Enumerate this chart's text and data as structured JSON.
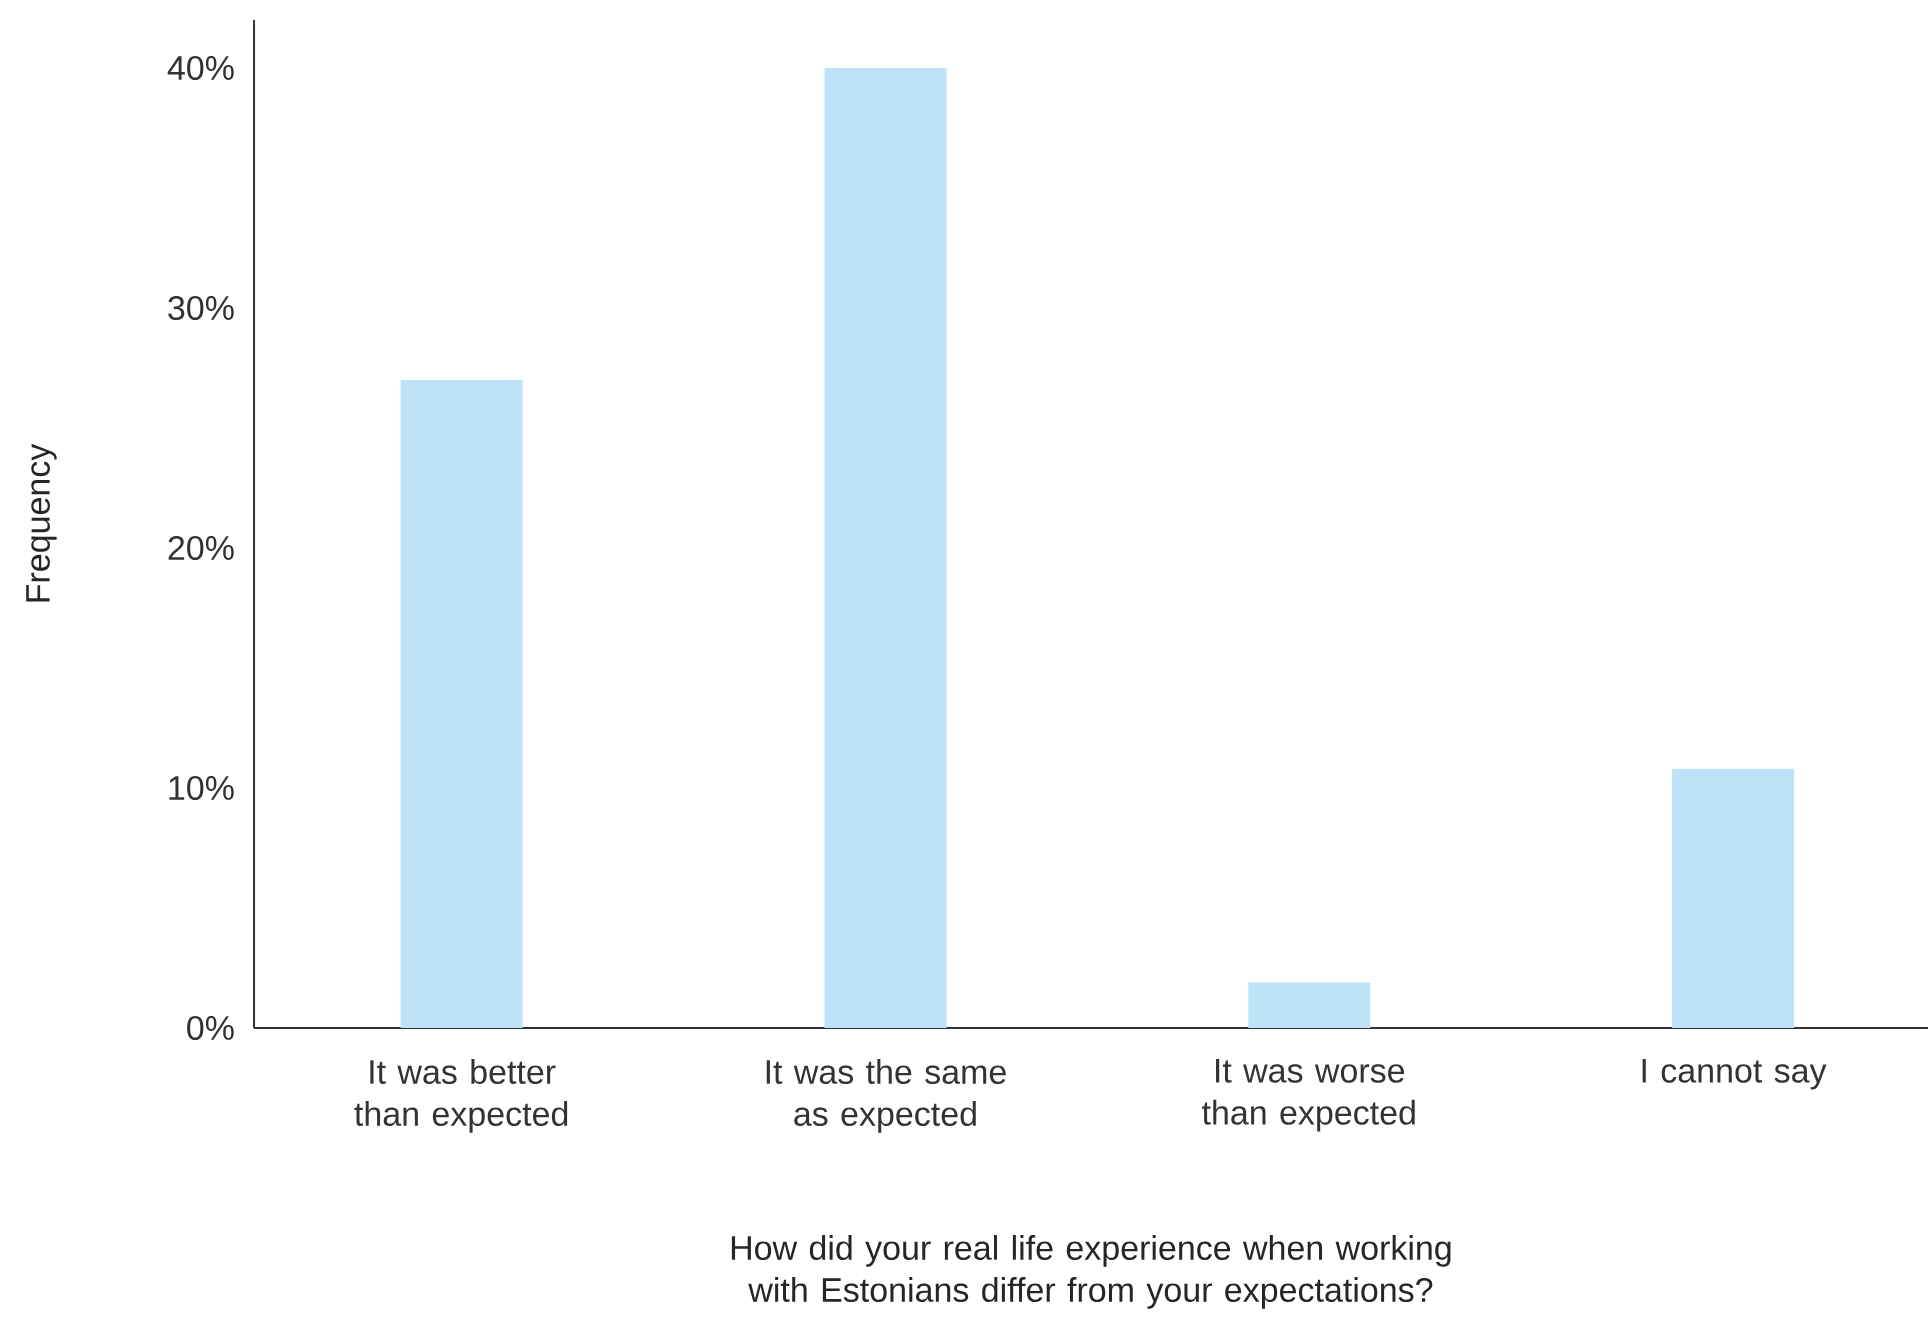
{
  "chart_data": {
    "type": "bar",
    "categories": [
      "It was better than expected",
      "It was the same as expected",
      "It was worse than expected",
      "I cannot say"
    ],
    "values": [
      27,
      40,
      1.9,
      10.8
    ],
    "color": "#bee3f8",
    "xlabel": "How did your real life experience when working with Estonians differ from your expectations?",
    "ylabel": "Frequency",
    "ylim": [
      0,
      42
    ],
    "yticks": [
      {
        "value": 0,
        "label": "0%"
      },
      {
        "value": 10,
        "label": "10%"
      },
      {
        "value": 20,
        "label": "20%"
      },
      {
        "value": 30,
        "label": "30%"
      },
      {
        "value": 40,
        "label": "40%"
      }
    ],
    "grid": false
  }
}
